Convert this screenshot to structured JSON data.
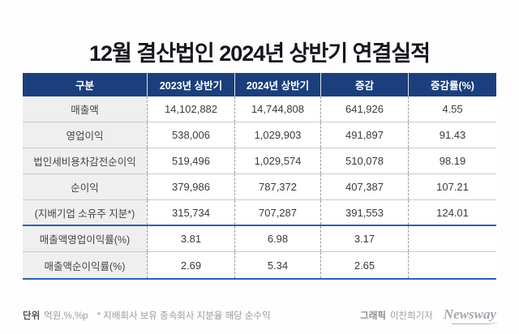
{
  "title": "12월 결산법인 2024년 상반기 연결실적",
  "chart_data": {
    "type": "table",
    "title": "12월 결산법인 2024년 상반기 연결실적",
    "unit": "억원,%,%p",
    "columns": [
      "구분",
      "2023년 상반기",
      "2024년 상반기",
      "증감",
      "증감률(%)"
    ],
    "rows": [
      {
        "label": "매출액",
        "h1_2023": "14,102,882",
        "h1_2024": "14,744,808",
        "change": "641,926",
        "change_pct": "4.55"
      },
      {
        "label": "영업이익",
        "h1_2023": "538,006",
        "h1_2024": "1,029,903",
        "change": "491,897",
        "change_pct": "91.43"
      },
      {
        "label": "법인세비용차감전순이익",
        "h1_2023": "519,496",
        "h1_2024": "1,029,574",
        "change": "510,078",
        "change_pct": "98.19"
      },
      {
        "label": "순이익",
        "h1_2023": "379,986",
        "h1_2024": "787,372",
        "change": "407,387",
        "change_pct": "107.21"
      },
      {
        "label": "(지배기업 소유주 지분*)",
        "h1_2023": "315,734",
        "h1_2024": "707,287",
        "change": "391,553",
        "change_pct": "124.01"
      },
      {
        "label": "매출액영업이익률(%)",
        "h1_2023": "3.81",
        "h1_2024": "6.98",
        "change": "3.17",
        "change_pct": ""
      },
      {
        "label": "매출액순이익률(%)",
        "h1_2023": "2.69",
        "h1_2024": "5.34",
        "change": "2.65",
        "change_pct": ""
      }
    ]
  },
  "footer": {
    "unit_label": "단위",
    "unit_text": "억원,%,%p",
    "note": "* 지배회사 보유 종속회사 지분율 해당 순수익",
    "credit_label": "그래픽",
    "credit_name": "이찬희기자",
    "logo_text": "Newsway"
  },
  "colors": {
    "header_navy": "#1a3f7c",
    "accent_blue": "#2e61a8",
    "label_column_bg": "#efefef",
    "row_divider": "#cbcbcb",
    "dashed_divider": "#9b9b9b",
    "title_text": "#16161e"
  }
}
